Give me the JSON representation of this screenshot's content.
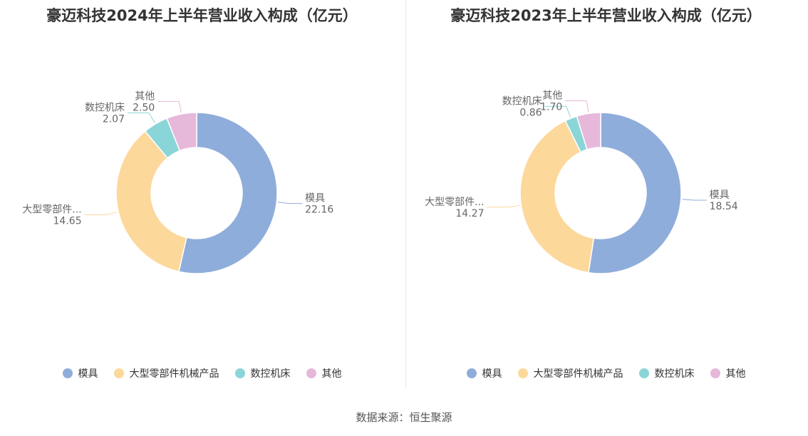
{
  "colors": {
    "模具": "#8fadda",
    "大型零部件机械产品": "#fdd89b",
    "数控机床": "#8ad5d8",
    "其他": "#e6b8da"
  },
  "chart_data": [
    {
      "type": "pie",
      "title": "豪迈科技2024年上半年营业收入构成（亿元）",
      "categories": [
        "模具",
        "大型零部件机械产品",
        "数控机床",
        "其他"
      ],
      "values": [
        22.16,
        14.65,
        2.07,
        2.5
      ],
      "value_labels": [
        "22.16",
        "14.65",
        "2.07",
        "2.50"
      ],
      "slice_labels": [
        "模具",
        "大型零部件...",
        "数控机床",
        "其他"
      ],
      "legend": [
        "模具",
        "大型零部件机械产品",
        "数控机床",
        "其他"
      ]
    },
    {
      "type": "pie",
      "title": "豪迈科技2023年上半年营业收入构成（亿元）",
      "categories": [
        "模具",
        "大型零部件机械产品",
        "数控机床",
        "其他"
      ],
      "values": [
        18.54,
        14.27,
        0.86,
        1.7
      ],
      "value_labels": [
        "18.54",
        "14.27",
        "0.86",
        "1.70"
      ],
      "slice_labels": [
        "模具",
        "大型零部件...",
        "数控机床",
        "其他"
      ],
      "legend": [
        "模具",
        "大型零部件机械产品",
        "数控机床",
        "其他"
      ]
    }
  ],
  "source": "数据来源：恒生聚源"
}
